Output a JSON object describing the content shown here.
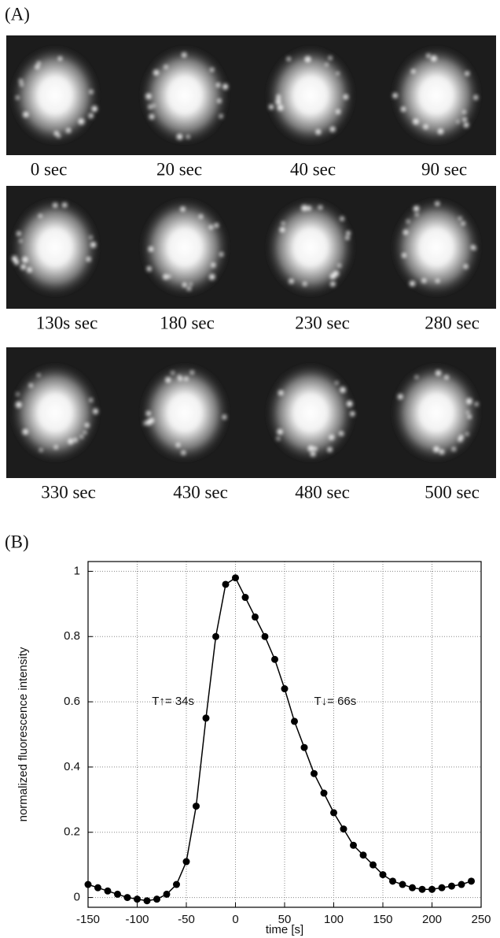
{
  "panel_a": {
    "label": "(A)",
    "rows": [
      [
        "0 sec",
        "20 sec",
        "40 sec",
        "90 sec"
      ],
      [
        "130s sec",
        "180 sec",
        "230 sec",
        "280 sec"
      ],
      [
        "330 sec",
        "430 sec",
        "480 sec",
        "500 sec"
      ]
    ]
  },
  "panel_b": {
    "label": "(B)"
  },
  "chart_data": {
    "type": "line",
    "x_label": "time [s]",
    "y_label": "normalized fluorescence intensity",
    "x": [
      -150,
      -140,
      -130,
      -120,
      -110,
      -100,
      -90,
      -80,
      -70,
      -60,
      -50,
      -40,
      -30,
      -20,
      -10,
      0,
      10,
      20,
      30,
      40,
      50,
      60,
      70,
      80,
      90,
      100,
      110,
      120,
      130,
      140,
      150,
      160,
      170,
      180,
      190,
      200,
      210,
      220,
      230,
      240
    ],
    "series": [
      {
        "color": "#000000",
        "values": [
          0.04,
          0.03,
          0.02,
          0.01,
          0.0,
          -0.005,
          -0.01,
          -0.005,
          0.01,
          0.04,
          0.11,
          0.28,
          0.55,
          0.8,
          0.96,
          0.98,
          0.92,
          0.86,
          0.8,
          0.73,
          0.64,
          0.54,
          0.46,
          0.38,
          0.32,
          0.26,
          0.21,
          0.16,
          0.13,
          0.1,
          0.07,
          0.05,
          0.04,
          0.03,
          0.025,
          0.025,
          0.03,
          0.035,
          0.04,
          0.05
        ]
      }
    ],
    "xlim": [
      -150,
      250
    ],
    "ylim": [
      -0.03,
      1.03
    ],
    "xticks": [
      -150,
      -100,
      -50,
      0,
      50,
      100,
      150,
      200,
      250
    ],
    "yticks": [
      0,
      0.2,
      0.4,
      0.6,
      0.8,
      1
    ],
    "grid": true,
    "annotations": [
      {
        "text": "T↑= 34s",
        "x": -85,
        "y": 0.6
      },
      {
        "text": "T↓= 66s",
        "x": 80,
        "y": 0.6
      }
    ]
  }
}
